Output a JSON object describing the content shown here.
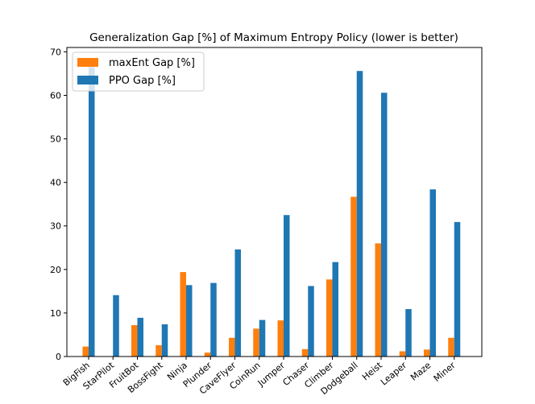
{
  "chart_data": {
    "type": "bar",
    "title": "Generalization Gap [%] of Maximum Entropy Policy (lower is better)",
    "xlabel": "",
    "ylabel": "",
    "ylim": [
      0,
      71
    ],
    "yticks": [
      0,
      10,
      20,
      30,
      40,
      50,
      60,
      70
    ],
    "grid": false,
    "legend_position": "top-left",
    "categories": [
      "BigFish",
      "StarPilot",
      "FruitBot",
      "BossFight",
      "Ninja",
      "Plunder",
      "CaveFlyer",
      "CoinRun",
      "Jumper",
      "Chaser",
      "Climber",
      "Dodgeball",
      "Heist",
      "Leaper",
      "Maze",
      "Miner"
    ],
    "series": [
      {
        "name": "maxEnt Gap [%]",
        "color": "#ff7f0e",
        "values": [
          2.3,
          0,
          7.2,
          2.6,
          19.4,
          0.9,
          4.3,
          6.4,
          8.3,
          1.7,
          17.7,
          36.7,
          26.0,
          1.2,
          1.6,
          4.3
        ]
      },
      {
        "name": "PPO Gap [%]",
        "color": "#1f77b4",
        "values": [
          66.5,
          14.1,
          8.9,
          7.4,
          16.4,
          16.9,
          24.6,
          8.4,
          32.5,
          16.2,
          21.7,
          65.6,
          60.6,
          10.9,
          38.4,
          30.9
        ]
      }
    ]
  }
}
